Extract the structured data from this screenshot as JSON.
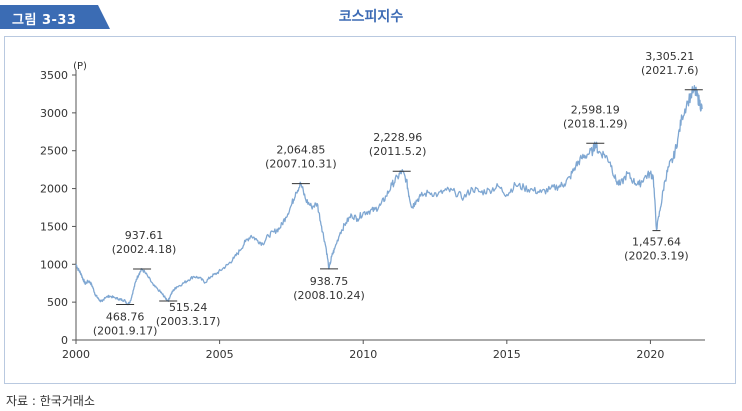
{
  "figure_label": "그림 3-33",
  "source": "자료 : 한국거래소",
  "colors": {
    "line": "#7fa7d2",
    "accent": "#3b6cb4",
    "axis": "#555555"
  },
  "chart_data": {
    "type": "line",
    "title": "코스피지수",
    "ylabel": "(P)",
    "xlabel": "",
    "xlim": [
      2000.0,
      2021.9
    ],
    "ylim": [
      0,
      3500
    ],
    "yticks": [
      0,
      500,
      1000,
      1500,
      2000,
      2500,
      3000,
      3500
    ],
    "xticks": [
      2000,
      2005,
      2010,
      2015,
      2020
    ],
    "grid": false,
    "series": [
      {
        "name": "",
        "x": [
          2000.0,
          2000.08,
          2000.17,
          2000.25,
          2000.33,
          2000.42,
          2000.5,
          2000.58,
          2000.67,
          2000.75,
          2000.83,
          2000.92,
          2001.0,
          2001.17,
          2001.33,
          2001.5,
          2001.6,
          2001.71,
          2001.8,
          2001.9,
          2002.0,
          2002.1,
          2002.2,
          2002.3,
          2002.5,
          2002.7,
          2002.9,
          2003.0,
          2003.1,
          2003.21,
          2003.3,
          2003.4,
          2003.5,
          2003.7,
          2003.9,
          2004.1,
          2004.3,
          2004.5,
          2004.7,
          2004.9,
          2005.1,
          2005.3,
          2005.5,
          2005.7,
          2005.9,
          2006.1,
          2006.3,
          2006.5,
          2006.7,
          2006.9,
          2007.1,
          2007.3,
          2007.5,
          2007.65,
          2007.83,
          2008.0,
          2008.2,
          2008.4,
          2008.55,
          2008.7,
          2008.81,
          2008.9,
          2009.0,
          2009.2,
          2009.4,
          2009.6,
          2009.8,
          2010.0,
          2010.2,
          2010.4,
          2010.6,
          2010.8,
          2011.0,
          2011.2,
          2011.34,
          2011.5,
          2011.6,
          2011.7,
          2011.8,
          2012.0,
          2012.3,
          2012.6,
          2012.9,
          2013.2,
          2013.5,
          2013.8,
          2014.1,
          2014.4,
          2014.7,
          2015.0,
          2015.3,
          2015.6,
          2015.9,
          2016.2,
          2016.5,
          2016.8,
          2017.0,
          2017.2,
          2017.4,
          2017.6,
          2017.8,
          2018.0,
          2018.08,
          2018.2,
          2018.4,
          2018.6,
          2018.8,
          2018.95,
          2019.2,
          2019.4,
          2019.6,
          2019.8,
          2020.0,
          2020.1,
          2020.21,
          2020.35,
          2020.5,
          2020.65,
          2020.8,
          2020.95,
          2021.1,
          2021.3,
          2021.51,
          2021.6,
          2021.7,
          2021.8
        ],
        "values": [
          1000,
          930,
          880,
          800,
          740,
          780,
          760,
          700,
          600,
          560,
          520,
          510,
          560,
          580,
          560,
          540,
          530,
          520,
          469,
          520,
          660,
          800,
          880,
          938,
          840,
          720,
          650,
          610,
          560,
          515,
          600,
          660,
          700,
          740,
          790,
          840,
          820,
          760,
          840,
          880,
          940,
          1000,
          1080,
          1180,
          1300,
          1380,
          1320,
          1270,
          1380,
          1430,
          1480,
          1620,
          1780,
          1950,
          2065,
          1850,
          1760,
          1800,
          1500,
          1230,
          939,
          1100,
          1200,
          1420,
          1550,
          1650,
          1600,
          1680,
          1700,
          1720,
          1780,
          1900,
          2050,
          2150,
          2229,
          2120,
          1900,
          1750,
          1820,
          1900,
          1950,
          1920,
          1980,
          1950,
          1880,
          2000,
          1950,
          1980,
          2030,
          1920,
          2050,
          2010,
          1980,
          1950,
          1990,
          2030,
          2060,
          2150,
          2300,
          2400,
          2450,
          2500,
          2598,
          2480,
          2450,
          2350,
          2100,
          2050,
          2200,
          2100,
          2050,
          2150,
          2200,
          2150,
          1458,
          1750,
          2100,
          2300,
          2400,
          2650,
          2950,
          3150,
          3305,
          3250,
          3150,
          3050
        ]
      }
    ],
    "annotations": [
      {
        "x": 2001.71,
        "y": 469,
        "value": "468.76",
        "date": "(2001.9.17)"
      },
      {
        "x": 2002.3,
        "y": 938,
        "value": "937.61",
        "date": "(2002.4.18)"
      },
      {
        "x": 2003.21,
        "y": 515,
        "value": "515.24",
        "date": "(2003.3.17)"
      },
      {
        "x": 2007.83,
        "y": 2065,
        "value": "2,064.85",
        "date": "(2007.10.31)"
      },
      {
        "x": 2008.81,
        "y": 939,
        "value": "938.75",
        "date": "(2008.10.24)"
      },
      {
        "x": 2011.34,
        "y": 2229,
        "value": "2,228.96",
        "date": "(2011.5.2)"
      },
      {
        "x": 2018.08,
        "y": 2598,
        "value": "2,598.19",
        "date": "(2018.1.29)"
      },
      {
        "x": 2020.21,
        "y": 1458,
        "value": "1,457.64",
        "date": "(2020.3.19)"
      },
      {
        "x": 2021.51,
        "y": 3305,
        "value": "3,305.21",
        "date": "(2021.7.6)"
      }
    ]
  }
}
